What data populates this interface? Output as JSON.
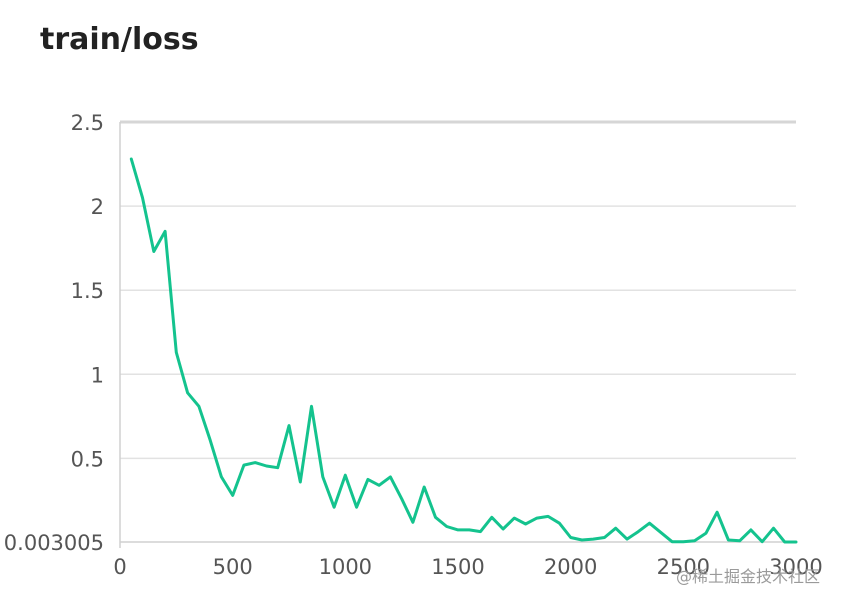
{
  "chart_data": {
    "type": "line",
    "title": "train/loss",
    "xlabel": "",
    "ylabel": "",
    "xlim": [
      0,
      3000
    ],
    "ylim": [
      0.003005,
      2.5
    ],
    "grid": true,
    "legend": "none",
    "x_ticks": [
      {
        "value": 0,
        "label": "0"
      },
      {
        "value": 500,
        "label": "500"
      },
      {
        "value": 1000,
        "label": "1000"
      },
      {
        "value": 1500,
        "label": "1500"
      },
      {
        "value": 2000,
        "label": "2000"
      },
      {
        "value": 2500,
        "label": "2500"
      },
      {
        "value": 3000,
        "label": "3000"
      }
    ],
    "y_ticks": [
      {
        "value": 0.003005,
        "label": "0.003005"
      },
      {
        "value": 0.5,
        "label": "0.5"
      },
      {
        "value": 1,
        "label": "1"
      },
      {
        "value": 1.5,
        "label": "1.5"
      },
      {
        "value": 2,
        "label": "2"
      },
      {
        "value": 2.5,
        "label": "2.5"
      }
    ],
    "series": [
      {
        "color": "#14c38e",
        "x": [
          50,
          100,
          150,
          200,
          250,
          300,
          350,
          400,
          450,
          500,
          550,
          600,
          650,
          700,
          750,
          800,
          850,
          900,
          950,
          1000,
          1050,
          1100,
          1150,
          1200,
          1250,
          1300,
          1350,
          1400,
          1450,
          1500,
          1550,
          1600,
          1650,
          1700,
          1750,
          1800,
          1850,
          1900,
          1950,
          2000,
          2050,
          2100,
          2150,
          2200,
          2250,
          2300,
          2350,
          2400,
          2450,
          2500,
          2550,
          2600,
          2650,
          2700,
          2750,
          2800,
          2850,
          2900,
          2950,
          3000
        ],
        "y": [
          2.28,
          2.05,
          1.73,
          1.85,
          1.13,
          0.89,
          0.81,
          0.61,
          0.39,
          0.28,
          0.46,
          0.475,
          0.455,
          0.445,
          0.695,
          0.36,
          0.81,
          0.39,
          0.21,
          0.4,
          0.21,
          0.375,
          0.34,
          0.39,
          0.26,
          0.12,
          0.33,
          0.15,
          0.095,
          0.075,
          0.075,
          0.065,
          0.15,
          0.08,
          0.145,
          0.11,
          0.145,
          0.155,
          0.115,
          0.03,
          0.015,
          0.02,
          0.03,
          0.085,
          0.02,
          0.065,
          0.115,
          0.06,
          0.005,
          0.005,
          0.01,
          0.055,
          0.18,
          0.015,
          0.01,
          0.075,
          0.005,
          0.085,
          0.003,
          0.003
        ]
      }
    ]
  },
  "watermark": "@稀土掘金技术社区"
}
